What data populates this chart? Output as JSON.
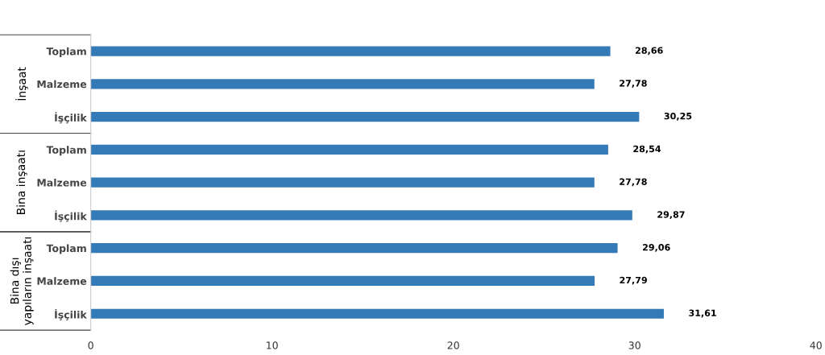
{
  "chart_data": {
    "type": "bar",
    "orientation": "horizontal",
    "categories": [
      "Toplam",
      "Malzeme",
      "İşçilik",
      "Toplam",
      "Malzeme",
      "İşçilik",
      "Toplam",
      "Malzeme",
      "İşçilik"
    ],
    "values": [
      28.66,
      27.78,
      30.25,
      28.54,
      27.78,
      29.87,
      29.06,
      27.79,
      31.61
    ],
    "value_labels": [
      "28,66",
      "27,78",
      "30,25",
      "28,54",
      "27,78",
      "29,87",
      "29,06",
      "27,79",
      "31,61"
    ],
    "color": "#337ab7",
    "xlim": [
      0,
      40
    ],
    "xticks": [
      0,
      10,
      20,
      30,
      40
    ],
    "grid": false,
    "legend": false,
    "annotations": [
      "İnşaat",
      "Bina inşaatı",
      "Bina dışı yapıların inşaatı"
    ]
  }
}
